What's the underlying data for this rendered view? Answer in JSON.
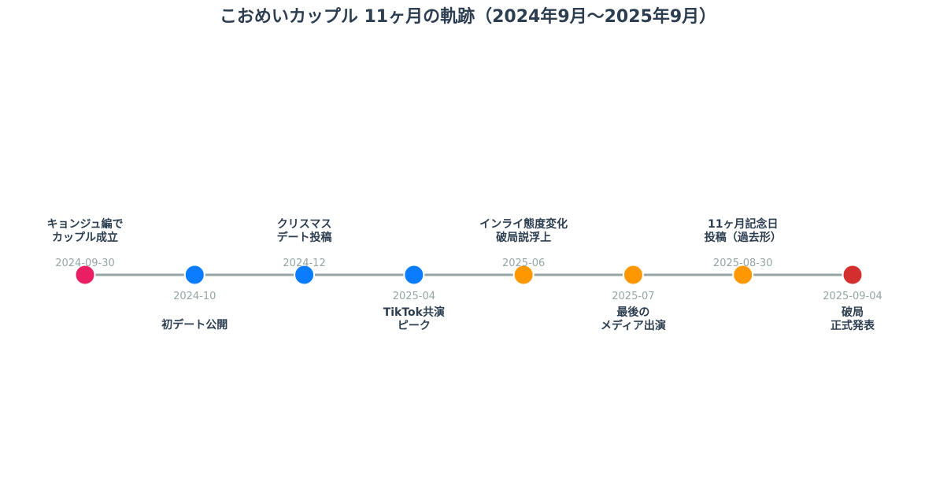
{
  "title": "こおめいカップル 11ヶ月の軌跡（2024年9月〜2025年9月）",
  "colors": {
    "line": "#95a5a6",
    "text": "#2c3e50",
    "date": "#95a5a6",
    "pink": "#e91e63",
    "blue": "#0a7cff",
    "orange": "#ff9800",
    "red": "#d32f2f"
  },
  "events": [
    {
      "date": "2024-09-30",
      "label": [
        "キョンジュ編で",
        "カップル成立"
      ],
      "color": "pink",
      "side": "above"
    },
    {
      "date": "2024-10",
      "label": [
        "初デート公開"
      ],
      "color": "blue",
      "side": "below"
    },
    {
      "date": "2024-12",
      "label": [
        "クリスマス",
        "デート投稿"
      ],
      "color": "blue",
      "side": "above"
    },
    {
      "date": "2025-04",
      "label": [
        "TikTok共演",
        "ピーク"
      ],
      "color": "blue",
      "side": "below"
    },
    {
      "date": "2025-06",
      "label": [
        "インライ態度変化",
        "破局説浮上"
      ],
      "color": "orange",
      "side": "above"
    },
    {
      "date": "2025-07",
      "label": [
        "最後の",
        "メディア出演"
      ],
      "color": "orange",
      "side": "below"
    },
    {
      "date": "2025-08-30",
      "label": [
        "11ヶ月記念日",
        "投稿（過去形）"
      ],
      "color": "orange",
      "side": "above"
    },
    {
      "date": "2025-09-04",
      "label": [
        "破局",
        "正式発表"
      ],
      "color": "red",
      "side": "below"
    }
  ]
}
